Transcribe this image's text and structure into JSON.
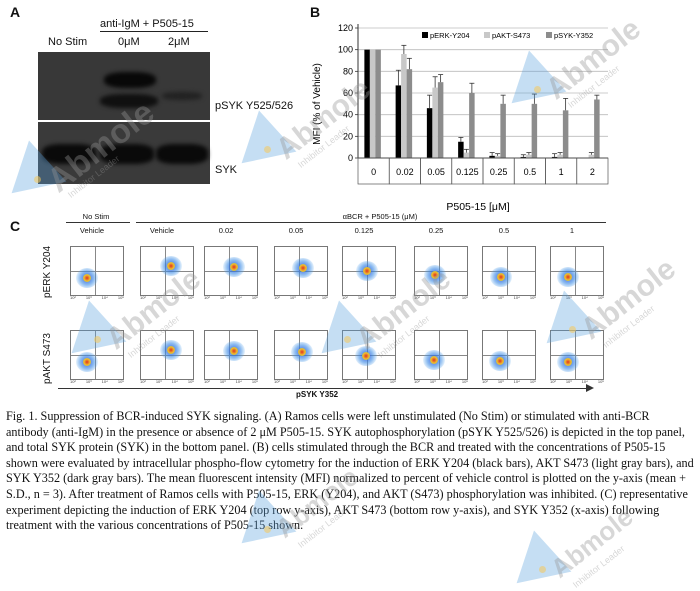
{
  "panel_letters": {
    "a": "A",
    "b": "B",
    "c": "C"
  },
  "panel_a": {
    "header_group": "anti-IgM + P505-15",
    "lanes": [
      "No Stim",
      "0μM",
      "2μM"
    ],
    "bands": [
      "pSYK Y525/526",
      "SYK"
    ]
  },
  "chart_data": {
    "type": "bar",
    "title": "",
    "xlabel": "P505-15 [μM]",
    "ylabel": "MFI (% of Vehicle)",
    "ylim": [
      0,
      120
    ],
    "yticks": [
      0,
      20,
      40,
      60,
      80,
      100,
      120
    ],
    "categories": [
      "0",
      "0.02",
      "0.05",
      "0.125",
      "0.25",
      "0.5",
      "1",
      "2"
    ],
    "series": [
      {
        "name": "pERK-Y204",
        "color": "#000000",
        "values": [
          100,
          67,
          46,
          15,
          2,
          1,
          1,
          0
        ],
        "errors": [
          0,
          14,
          12,
          4,
          3,
          2,
          3,
          0
        ]
      },
      {
        "name": "pAKT-S473",
        "color": "#c8c8c8",
        "values": [
          100,
          96,
          65,
          5,
          2,
          3,
          3,
          3
        ],
        "errors": [
          0,
          8,
          10,
          3,
          2,
          2,
          2,
          2
        ]
      },
      {
        "name": "pSYK-Y352",
        "color": "#8c8c8c",
        "values": [
          100,
          82,
          70,
          60,
          50,
          50,
          44,
          54
        ],
        "errors": [
          0,
          10,
          7,
          9,
          8,
          9,
          11,
          4
        ]
      }
    ],
    "legend_position": "top-right",
    "grid": true
  },
  "panel_c": {
    "group_nostim": "No Stim",
    "group_bcr": "αBCR + P505-15 (μM)",
    "columns": [
      "Vehicle",
      "Vehicle",
      "0.02",
      "0.05",
      "0.125",
      "0.25",
      "0.5",
      "1"
    ],
    "row_labels": [
      "pERK Y204",
      "pAKT S473"
    ],
    "x_label": "pSYK Y352",
    "tick_labels": [
      "10²",
      "10³",
      "10⁴",
      "10⁵"
    ],
    "spot_levels": {
      "row1": [
        0.15,
        0.85,
        0.8,
        0.75,
        0.55,
        0.35,
        0.25,
        0.2
      ],
      "row2": [
        0.15,
        0.85,
        0.8,
        0.7,
        0.5,
        0.3,
        0.22,
        0.18
      ]
    }
  },
  "caption": "Fig. 1. Suppression of BCR-induced SYK signaling. (A) Ramos cells were left unstimulated (No Stim) or stimulated with anti-BCR antibody (anti-IgM) in the presence or absence of 2 μM P505-15. SYK autophosphorylation (pSYK Y525/526) is depicted in the top panel, and total SYK protein (SYK) in the bottom panel. (B) cells stimulated through the BCR and treated with the concentrations of P505-15 shown were evaluated by intracellular phospho-flow cytometry for the induction of ERK Y204 (black bars), AKT S473 (light gray bars), and SYK Y352 (dark gray bars). The mean fluorescent intensity (MFI) normalized to percent of vehicle control is plotted on the y-axis (mean + S.D., n = 3). After treatment of Ramos cells with P505-15, ERK (Y204), and AKT (S473) phosphorylation was inhibited. (C) representative experiment depicting the induction of ERK Y204 (top row y-axis), AKT S473 (bottom row y-axis), and SYK Y352 (x-axis) following treatment with the various concentrations of P505-15 shown.",
  "watermark": {
    "brand": "Abmole",
    "sub": "Inhibitor Leader"
  }
}
